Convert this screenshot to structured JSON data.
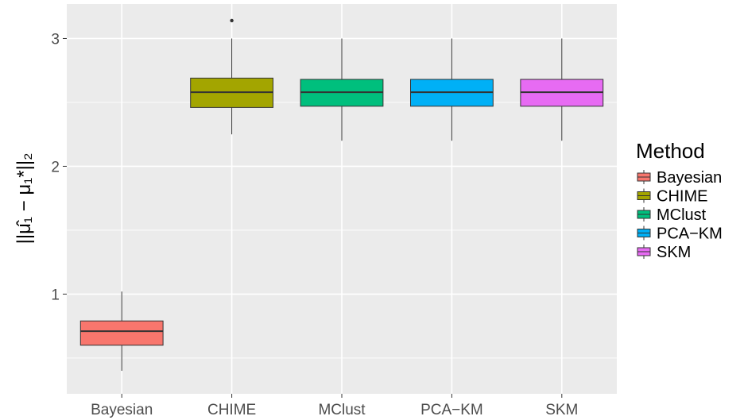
{
  "chart_data": {
    "type": "boxplot",
    "ylabel": "||μ̂₁ − μ₁*||₂",
    "ylim": [
      0.22,
      3.27
    ],
    "y_ticks": [
      1,
      2,
      3
    ],
    "y_tick_labels": [
      "1",
      "2",
      "3"
    ],
    "categories": [
      "Bayesian",
      "CHIME",
      "MClust",
      "PCA−KM",
      "SKM"
    ],
    "boxes": [
      {
        "name": "Bayesian",
        "whisker_low": 0.4,
        "q1": 0.6,
        "median": 0.71,
        "q3": 0.79,
        "whisker_high": 1.02,
        "outliers": [],
        "color": "#F8766D"
      },
      {
        "name": "CHIME",
        "whisker_low": 2.25,
        "q1": 2.46,
        "median": 2.58,
        "q3": 2.69,
        "whisker_high": 3.0,
        "outliers": [
          3.14
        ],
        "color": "#A3A500"
      },
      {
        "name": "MClust",
        "whisker_low": 2.2,
        "q1": 2.47,
        "median": 2.58,
        "q3": 2.68,
        "whisker_high": 3.0,
        "outliers": [],
        "color": "#00BF7D"
      },
      {
        "name": "PCA−KM",
        "whisker_low": 2.2,
        "q1": 2.47,
        "median": 2.58,
        "q3": 2.68,
        "whisker_high": 3.0,
        "outliers": [],
        "color": "#00B0F6"
      },
      {
        "name": "SKM",
        "whisker_low": 2.2,
        "q1": 2.47,
        "median": 2.58,
        "q3": 2.68,
        "whisker_high": 3.0,
        "outliers": [],
        "color": "#E76BF3"
      }
    ],
    "grid": true,
    "legend": {
      "title": "Method",
      "placement": "right",
      "entries": [
        "Bayesian",
        "CHIME",
        "MClust",
        "PCA−KM",
        "SKM"
      ]
    }
  }
}
